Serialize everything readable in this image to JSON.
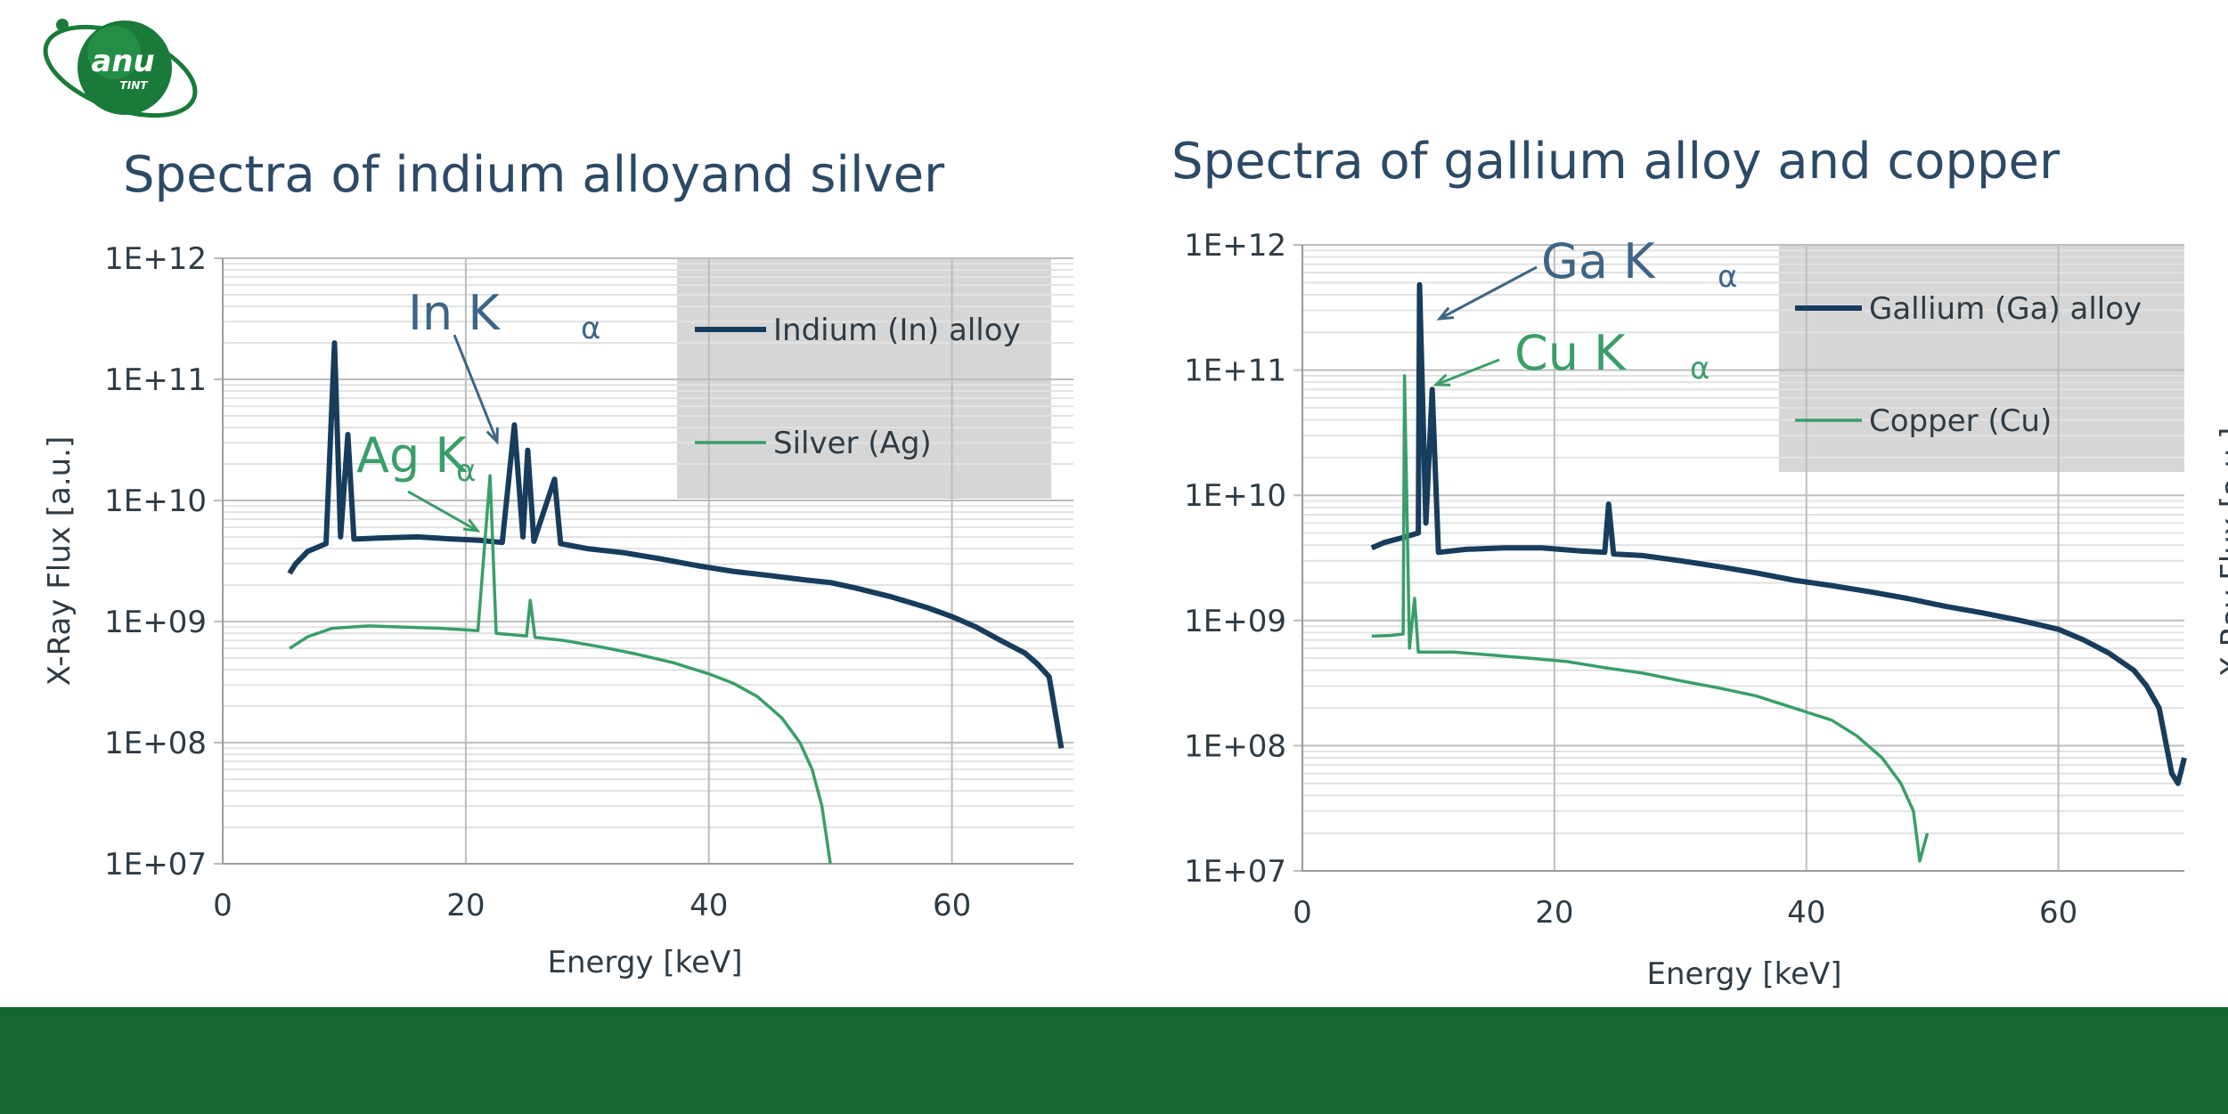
{
  "logo": {
    "text": "anu",
    "subtext": "TINT"
  },
  "colors": {
    "dark_series": "#173c5c",
    "green_series": "#3a9e6a",
    "annotation_dark": "#3e6585",
    "annotation_green": "#3a9e6a",
    "footer": "#13672f",
    "logo_green": "#1a7a3a",
    "legend_box": "#d6d6d6"
  },
  "chart_data": [
    {
      "type": "line",
      "title": "Spectra of indium alloyand silver",
      "xlabel": "Energy [keV]",
      "ylabel": "X-Ray Flux [a.u.]",
      "xlim": [
        0,
        70
      ],
      "ylim": [
        10000000.0,
        1000000000000.0
      ],
      "yscale": "log",
      "xticks": [
        "0",
        "20",
        "40",
        "60"
      ],
      "yticks": [
        "1E+07",
        "1E+08",
        "1E+09",
        "1E+10",
        "1E+11",
        "1E+12"
      ],
      "grid": true,
      "legend_position": "top-right",
      "series": [
        {
          "name": "Indium (In) alloy",
          "color": "#173c5c",
          "points": [
            [
              5.5,
              2500000000.0
            ],
            [
              6,
              3000000000.0
            ],
            [
              7,
              3800000000.0
            ],
            [
              8.5,
              4400000000.0
            ],
            [
              9.2,
              200000000000.0
            ],
            [
              9.7,
              5000000000.0
            ],
            [
              10.3,
              35000000000.0
            ],
            [
              10.8,
              4800000000.0
            ],
            [
              13,
              4900000000.0
            ],
            [
              16,
              5000000000.0
            ],
            [
              19,
              4800000000.0
            ],
            [
              21,
              4700000000.0
            ],
            [
              23,
              4500000000.0
            ],
            [
              24,
              42000000000.0
            ],
            [
              24.7,
              5000000000.0
            ],
            [
              25.1,
              26000000000.0
            ],
            [
              25.6,
              4600000000.0
            ],
            [
              27.3,
              15000000000.0
            ],
            [
              27.8,
              4400000000.0
            ],
            [
              30,
              4000000000.0
            ],
            [
              33,
              3700000000.0
            ],
            [
              36,
              3300000000.0
            ],
            [
              39,
              2900000000.0
            ],
            [
              42,
              2600000000.0
            ],
            [
              45,
              2400000000.0
            ],
            [
              48,
              2200000000.0
            ],
            [
              50,
              2100000000.0
            ],
            [
              52,
              1900000000.0
            ],
            [
              55,
              1600000000.0
            ],
            [
              58,
              1300000000.0
            ],
            [
              60,
              1100000000.0
            ],
            [
              62,
              900000000.0
            ],
            [
              64,
              700000000.0
            ],
            [
              66,
              550000000.0
            ],
            [
              67,
              450000000.0
            ],
            [
              68,
              350000000.0
            ],
            [
              69,
              90000000.0
            ]
          ]
        },
        {
          "name": "Silver (Ag)",
          "color": "#3a9e6a",
          "points": [
            [
              5.5,
              600000000.0
            ],
            [
              7,
              750000000.0
            ],
            [
              9,
              880000000.0
            ],
            [
              12,
              920000000.0
            ],
            [
              15,
              900000000.0
            ],
            [
              18,
              880000000.0
            ],
            [
              21,
              840000000.0
            ],
            [
              22,
              16000000000.0
            ],
            [
              22.5,
              800000000.0
            ],
            [
              25,
              760000000.0
            ],
            [
              25.3,
              1500000000.0
            ],
            [
              25.7,
              740000000.0
            ],
            [
              28,
              700000000.0
            ],
            [
              31,
              620000000.0
            ],
            [
              34,
              540000000.0
            ],
            [
              37,
              460000000.0
            ],
            [
              40,
              370000000.0
            ],
            [
              42,
              310000000.0
            ],
            [
              44,
              240000000.0
            ],
            [
              46,
              160000000.0
            ],
            [
              47.5,
              100000000.0
            ],
            [
              48.5,
              60000000.0
            ],
            [
              49.3,
              30000000.0
            ],
            [
              50,
              10000000.0
            ]
          ]
        }
      ],
      "annotations": [
        {
          "text": "In K",
          "sub": "α",
          "color": "#3e6585"
        },
        {
          "text": "Ag K",
          "sub": "α",
          "color": "#3a9e6a"
        }
      ]
    },
    {
      "type": "line",
      "title": "Spectra of gallium alloy and copper",
      "xlabel": "Energy [keV]",
      "ylabel": "X-Ray Flux [a.u.]",
      "xlim": [
        0,
        70
      ],
      "ylim": [
        10000000.0,
        1000000000000.0
      ],
      "yscale": "log",
      "xticks": [
        "0",
        "20",
        "40",
        "60"
      ],
      "yticks": [
        "1E+07",
        "1E+08",
        "1E+09",
        "1E+10",
        "1E+11",
        "1E+12"
      ],
      "grid": true,
      "legend_position": "top-right",
      "series": [
        {
          "name": "Gallium (Ga) alloy",
          "color": "#173c5c",
          "points": [
            [
              5.5,
              3800000000.0
            ],
            [
              6.5,
              4200000000.0
            ],
            [
              8,
              4600000000.0
            ],
            [
              9.2,
              5000000000.0
            ],
            [
              9.3,
              480000000000.0
            ],
            [
              9.8,
              6000000000.0
            ],
            [
              10.3,
              70000000000.0
            ],
            [
              10.8,
              3500000000.0
            ],
            [
              13,
              3700000000.0
            ],
            [
              16,
              3800000000.0
            ],
            [
              19,
              3800000000.0
            ],
            [
              22,
              3600000000.0
            ],
            [
              24,
              3500000000.0
            ],
            [
              24.3,
              8500000000.0
            ],
            [
              24.7,
              3400000000.0
            ],
            [
              27,
              3300000000.0
            ],
            [
              30,
              3000000000.0
            ],
            [
              33,
              2700000000.0
            ],
            [
              36,
              2400000000.0
            ],
            [
              39,
              2100000000.0
            ],
            [
              42,
              1900000000.0
            ],
            [
              45,
              1700000000.0
            ],
            [
              48,
              1500000000.0
            ],
            [
              51,
              1300000000.0
            ],
            [
              54,
              1150000000.0
            ],
            [
              57,
              1000000000.0
            ],
            [
              60,
              850000000.0
            ],
            [
              62,
              700000000.0
            ],
            [
              64,
              550000000.0
            ],
            [
              66,
              400000000.0
            ],
            [
              67,
              300000000.0
            ],
            [
              68,
              200000000.0
            ],
            [
              69,
              60000000.0
            ],
            [
              69.5,
              50000000.0
            ],
            [
              70,
              80000000.0
            ]
          ]
        },
        {
          "name": "Copper (Cu)",
          "color": "#3a9e6a",
          "points": [
            [
              5.5,
              750000000.0
            ],
            [
              7,
              760000000.0
            ],
            [
              8.0,
              780000000.0
            ],
            [
              8.1,
              90000000000.0
            ],
            [
              8.5,
              600000000.0
            ],
            [
              8.9,
              1500000000.0
            ],
            [
              9.2,
              560000000.0
            ],
            [
              12,
              560000000.0
            ],
            [
              15,
              530000000.0
            ],
            [
              18,
              500000000.0
            ],
            [
              21,
              470000000.0
            ],
            [
              24,
              420000000.0
            ],
            [
              27,
              380000000.0
            ],
            [
              30,
              330000000.0
            ],
            [
              33,
              290000000.0
            ],
            [
              36,
              250000000.0
            ],
            [
              39,
              200000000.0
            ],
            [
              42,
              160000000.0
            ],
            [
              44,
              120000000.0
            ],
            [
              46,
              80000000.0
            ],
            [
              47.5,
              50000000.0
            ],
            [
              48.5,
              30000000.0
            ],
            [
              49,
              12000000.0
            ],
            [
              49.6,
              20000000.0
            ]
          ]
        }
      ],
      "annotations": [
        {
          "text": "Ga K",
          "sub": "α",
          "color": "#3e6585"
        },
        {
          "text": "Cu K",
          "sub": "α",
          "color": "#3a9e6a"
        }
      ]
    }
  ]
}
